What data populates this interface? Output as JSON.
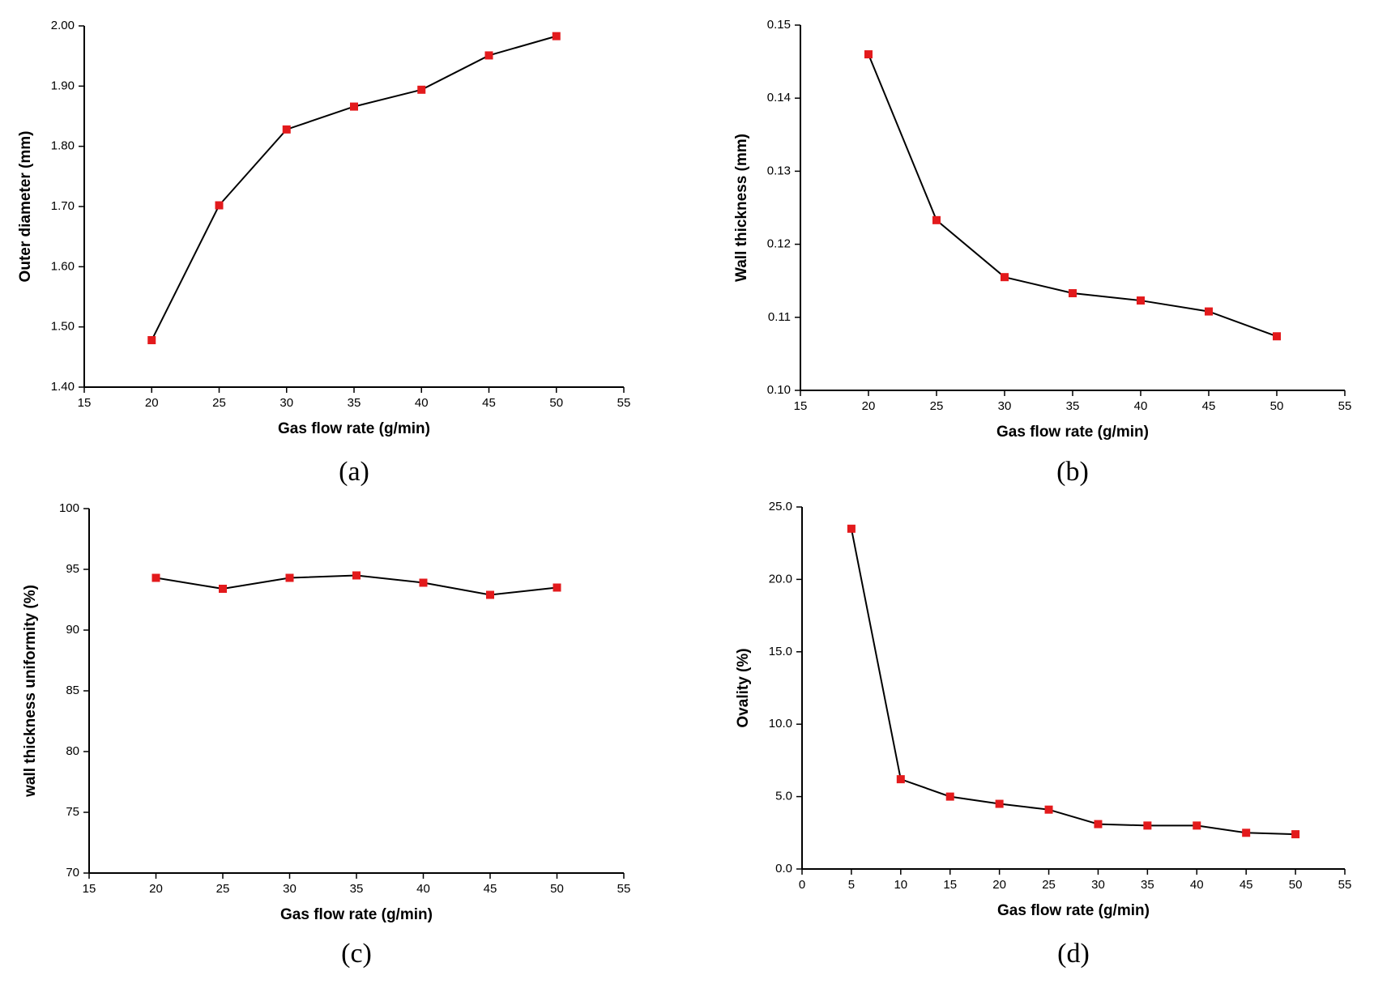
{
  "chart_data": [
    {
      "type": "line",
      "caption": "(a)",
      "xlabel": "Gas flow rate (g/min)",
      "ylabel": "Outer diameter (mm)",
      "x": [
        20,
        25,
        30,
        35,
        40,
        45,
        50
      ],
      "values": [
        1.478,
        1.702,
        1.828,
        1.866,
        1.894,
        1.951,
        1.983
      ],
      "color": "#e31a1c",
      "line_color": "#000000",
      "xlim": [
        15,
        55
      ],
      "xticks": [
        15,
        20,
        25,
        30,
        35,
        40,
        45,
        50,
        55
      ],
      "ylim": [
        1.4,
        2.0
      ],
      "yticks": [
        {
          "value": 1.4,
          "label": "1.40"
        },
        {
          "value": 1.5,
          "label": "1.50"
        },
        {
          "value": 1.6,
          "label": "1.60"
        },
        {
          "value": 1.7,
          "label": "1.70"
        },
        {
          "value": 1.8,
          "label": "1.80"
        },
        {
          "value": 1.9,
          "label": "1.90"
        },
        {
          "value": 2.0,
          "label": "2.00"
        }
      ]
    },
    {
      "type": "line",
      "caption": "(b)",
      "xlabel": "Gas flow rate (g/min)",
      "ylabel": "Wall thickness (mm)",
      "x": [
        20,
        25,
        30,
        35,
        40,
        45,
        50
      ],
      "values": [
        0.146,
        0.1233,
        0.1155,
        0.1133,
        0.1123,
        0.1108,
        0.1074
      ],
      "color": "#e31a1c",
      "line_color": "#000000",
      "xlim": [
        15,
        55
      ],
      "xticks": [
        15,
        20,
        25,
        30,
        35,
        40,
        45,
        50,
        55
      ],
      "ylim": [
        0.1,
        0.15
      ],
      "yticks": [
        {
          "value": 0.1,
          "label": "0.10"
        },
        0.11,
        0.12,
        0.13,
        0.14,
        0.15
      ]
    },
    {
      "type": "line",
      "caption": "(c)",
      "xlabel": "Gas flow rate (g/min)",
      "ylabel": "wall thickness uniformity (%)",
      "x": [
        20,
        25,
        30,
        35,
        40,
        45,
        50
      ],
      "values": [
        94.3,
        93.4,
        94.3,
        94.5,
        93.9,
        92.9,
        93.5
      ],
      "color": "#e31a1c",
      "line_color": "#000000",
      "xlim": [
        15,
        55
      ],
      "xticks": [
        15,
        20,
        25,
        30,
        35,
        40,
        45,
        50,
        55
      ],
      "ylim": [
        70,
        100
      ],
      "yticks": [
        70,
        75,
        80,
        85,
        90,
        95,
        100
      ]
    },
    {
      "type": "line",
      "caption": "(d)",
      "xlabel": "Gas flow rate (g/min)",
      "ylabel": "Ovality (%)",
      "x": [
        5,
        10,
        15,
        20,
        25,
        30,
        35,
        40,
        45,
        50
      ],
      "values": [
        23.5,
        6.2,
        5.0,
        4.5,
        4.1,
        3.1,
        3.0,
        3.0,
        2.5,
        2.4
      ],
      "color": "#e31a1c",
      "line_color": "#000000",
      "xlim": [
        0,
        55
      ],
      "xticks": [
        0,
        5,
        10,
        15,
        20,
        25,
        30,
        35,
        40,
        45,
        50,
        55
      ],
      "ylim": [
        0,
        25
      ],
      "yticks": [
        {
          "value": 0,
          "label": "0.0"
        },
        {
          "value": 5,
          "label": "5.0"
        },
        {
          "value": 10,
          "label": "10.0"
        },
        {
          "value": 15,
          "label": "15.0"
        },
        {
          "value": 20,
          "label": "20.0"
        },
        {
          "value": 25,
          "label": "25.0"
        }
      ]
    }
  ]
}
